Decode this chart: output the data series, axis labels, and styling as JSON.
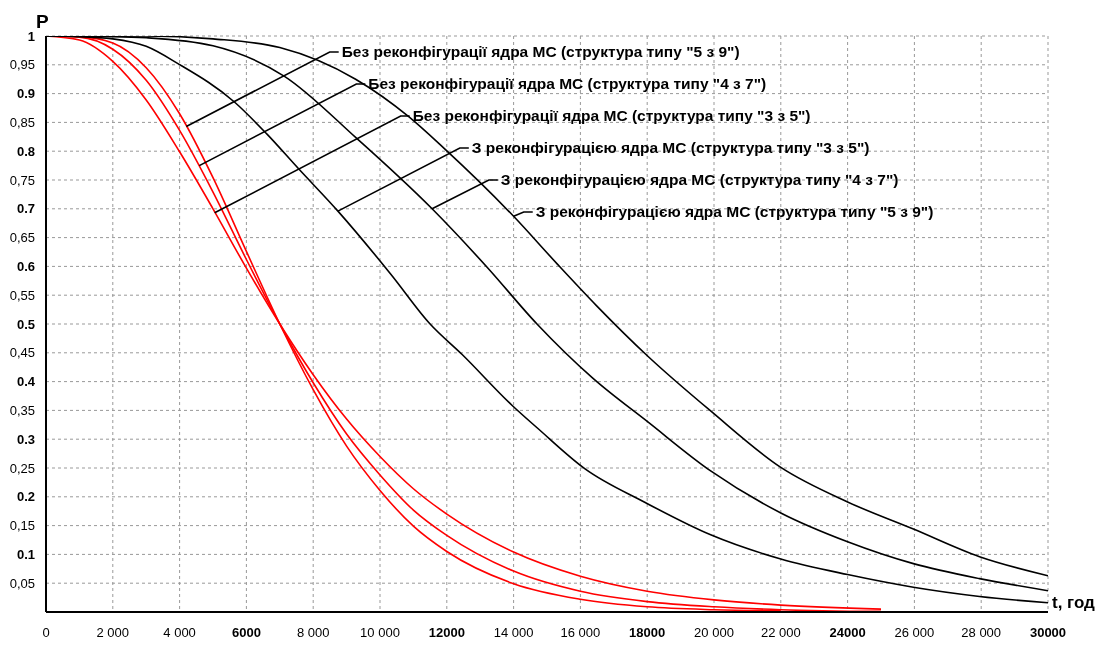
{
  "chart_data": {
    "type": "line",
    "xlabel": "t, год",
    "ylabel": "P",
    "xlim": [
      0,
      30000
    ],
    "ylim": [
      0,
      1
    ],
    "xticks": [
      {
        "value": 0,
        "label": "0"
      },
      {
        "value": 2000,
        "label": "2 000"
      },
      {
        "value": 4000,
        "label": "4 000"
      },
      {
        "value": 6000,
        "label": "6000"
      },
      {
        "value": 8000,
        "label": "8 000"
      },
      {
        "value": 10000,
        "label": "10 000"
      },
      {
        "value": 12000,
        "label": "12000"
      },
      {
        "value": 14000,
        "label": "14 000"
      },
      {
        "value": 16000,
        "label": "16 000"
      },
      {
        "value": 18000,
        "label": "18000"
      },
      {
        "value": 20000,
        "label": "20 000"
      },
      {
        "value": 22000,
        "label": "22 000"
      },
      {
        "value": 24000,
        "label": "24000"
      },
      {
        "value": 26000,
        "label": "26 000"
      },
      {
        "value": 28000,
        "label": "28 000"
      },
      {
        "value": 30000,
        "label": "30000"
      }
    ],
    "yticks": [
      {
        "value": 0.05,
        "label": "0,05"
      },
      {
        "value": 0.1,
        "label": "0.1"
      },
      {
        "value": 0.15,
        "label": "0,15"
      },
      {
        "value": 0.2,
        "label": "0.2"
      },
      {
        "value": 0.25,
        "label": "0,25"
      },
      {
        "value": 0.3,
        "label": "0.3"
      },
      {
        "value": 0.35,
        "label": "0,35"
      },
      {
        "value": 0.4,
        "label": "0.4"
      },
      {
        "value": 0.45,
        "label": "0,45"
      },
      {
        "value": 0.5,
        "label": "0.5"
      },
      {
        "value": 0.55,
        "label": "0,55"
      },
      {
        "value": 0.6,
        "label": "0.6"
      },
      {
        "value": 0.65,
        "label": "0,65"
      },
      {
        "value": 0.7,
        "label": "0.7"
      },
      {
        "value": 0.75,
        "label": "0,75"
      },
      {
        "value": 0.8,
        "label": "0.8"
      },
      {
        "value": 0.85,
        "label": "0,85"
      },
      {
        "value": 0.9,
        "label": "0.9"
      },
      {
        "value": 0.95,
        "label": "0,95"
      },
      {
        "value": 1,
        "label": "1"
      }
    ],
    "grid": true,
    "legend": false,
    "marker": "none",
    "line_style": "solid",
    "series": [
      {
        "color": "#ff0000",
        "x": [
          0,
          1000,
          2000,
          3000,
          4000,
          5000,
          6000,
          7000,
          8000,
          9000,
          10000,
          11000,
          12000,
          14000,
          16000,
          18000,
          20000,
          22000
        ],
        "values": [
          1,
          0.999,
          0.988,
          0.945,
          0.865,
          0.754,
          0.626,
          0.5,
          0.386,
          0.288,
          0.211,
          0.149,
          0.105,
          0.049,
          0.022,
          0.009,
          0.004,
          0.002
        ]
      },
      {
        "color": "#ff0000",
        "x": [
          0,
          1000,
          2000,
          3000,
          4000,
          5000,
          6000,
          7000,
          8000,
          9000,
          10000,
          11000,
          12000,
          14000,
          16000,
          18000,
          20000,
          22000,
          25000
        ],
        "values": [
          1,
          0.998,
          0.977,
          0.923,
          0.836,
          0.729,
          0.612,
          0.5,
          0.398,
          0.309,
          0.238,
          0.177,
          0.133,
          0.071,
          0.036,
          0.018,
          0.009,
          0.004,
          0.001
        ]
      },
      {
        "color": "#ff0000",
        "x": [
          0,
          1000,
          2000,
          3000,
          4000,
          5000,
          6000,
          7000,
          8000,
          9000,
          10000,
          11000,
          12000,
          14000,
          16000,
          18000,
          20000,
          22000,
          25000
        ],
        "values": [
          1,
          0.993,
          0.956,
          0.889,
          0.799,
          0.7,
          0.597,
          0.5,
          0.412,
          0.335,
          0.27,
          0.214,
          0.17,
          0.104,
          0.062,
          0.036,
          0.021,
          0.012,
          0.005
        ]
      },
      {
        "color": "#000000",
        "x": [
          0,
          1000,
          2000,
          3000,
          3950,
          5650,
          6610,
          7570,
          8740,
          10330,
          11500,
          12460,
          13950,
          14720,
          16150,
          17910,
          19900,
          22000,
          24000,
          25970,
          27950,
          30000
        ],
        "values": [
          1,
          0.999,
          0.995,
          0.982,
          0.952,
          0.885,
          0.83,
          0.769,
          0.696,
          0.586,
          0.5,
          0.447,
          0.359,
          0.319,
          0.248,
          0.191,
          0.134,
          0.092,
          0.065,
          0.043,
          0.027,
          0.016
        ]
      },
      {
        "color": "#000000",
        "x": [
          0,
          2000,
          3000,
          5000,
          7140,
          9270,
          11560,
          13200,
          14700,
          16370,
          18020,
          19900,
          22000,
          24000,
          25970,
          27950,
          30000
        ],
        "values": [
          1,
          0.999,
          0.997,
          0.983,
          0.93,
          0.824,
          0.7,
          0.599,
          0.5,
          0.406,
          0.33,
          0.245,
          0.172,
          0.122,
          0.084,
          0.058,
          0.037
        ]
      },
      {
        "color": "#000000",
        "x": [
          0,
          3000,
          5000,
          7000,
          9270,
          10860,
          11920,
          14000,
          15310,
          16480,
          18020,
          19900,
          22000,
          24000,
          25970,
          27950,
          30000
        ],
        "values": [
          1,
          1,
          0.995,
          0.98,
          0.925,
          0.86,
          0.805,
          0.687,
          0.604,
          0.532,
          0.444,
          0.349,
          0.251,
          0.191,
          0.144,
          0.096,
          0.063
        ]
      }
    ],
    "annotations": [
      {
        "text": "Без реконфігурації ядра МС (структура типу \"5 з 9\")",
        "x": 4200,
        "y": 0.843
      },
      {
        "text": "Без реконфігурації ядра МС (структура типу \"4 з 7\")",
        "x": 4590,
        "y": 0.775
      },
      {
        "text": "Без реконфігурації ядра МС (структура типу \"3 з 5\")",
        "x": 5050,
        "y": 0.693
      },
      {
        "text": "З реконфігурацією ядра МС (структура типу \"3 з 5\")",
        "x": 8740,
        "y": 0.696
      },
      {
        "text": "З реконфігурацією ядра МС (структура типу \"4 з 7\")",
        "x": 11560,
        "y": 0.7
      },
      {
        "text": "З реконфігурацією ядра МС (структура типу \"5 з 9\")",
        "x": 14000,
        "y": 0.687
      }
    ]
  }
}
